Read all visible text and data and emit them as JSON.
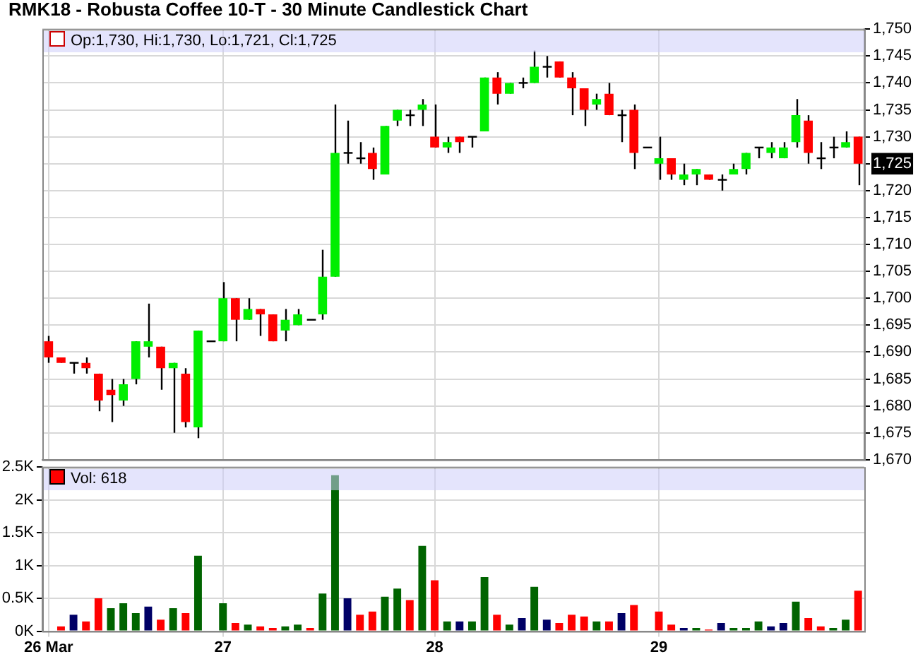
{
  "chart_data": [
    {
      "type": "candlestick",
      "title": "RMK18 - Robusta Coffee 10-T - 30 Minute Candlestick Chart",
      "categories": [
        null,
        null,
        null,
        null,
        null,
        null,
        null,
        null,
        null,
        null,
        null,
        null,
        null,
        null,
        null,
        null,
        null,
        null,
        null,
        null,
        null,
        null,
        null,
        null,
        null,
        null,
        null,
        null,
        null,
        null,
        null,
        null,
        null,
        null,
        null,
        null,
        null,
        null,
        null,
        null,
        null,
        null,
        null,
        null,
        null,
        null,
        null,
        null,
        null,
        null,
        null,
        null,
        null,
        null,
        null,
        null,
        null,
        null,
        null,
        null,
        null,
        null,
        null,
        null,
        null,
        null
      ],
      "ohlc": [
        [
          1692,
          1693,
          1688,
          1689
        ],
        [
          1689,
          1689,
          1688,
          1688
        ],
        [
          1688,
          1688,
          1686,
          1688
        ],
        [
          1688,
          1689,
          1686,
          1687
        ],
        [
          1686,
          1686,
          1679,
          1681
        ],
        [
          1683,
          1685,
          1677,
          1682
        ],
        [
          1681,
          1685,
          1680,
          1684
        ],
        [
          1685,
          1692,
          1684,
          1692
        ],
        [
          1691,
          1699,
          1689,
          1692
        ],
        [
          1691,
          1691,
          1683,
          1687
        ],
        [
          1687,
          1688,
          1675,
          1688
        ],
        [
          1686,
          1687,
          1676,
          1677
        ],
        [
          1676,
          1694,
          1674,
          1694
        ],
        [
          1692,
          1692,
          1692,
          1692
        ],
        [
          1692,
          1703,
          1692,
          1700
        ],
        [
          1700,
          1700,
          1692,
          1696
        ],
        [
          1696,
          1700,
          1696,
          1698
        ],
        [
          1698,
          1698,
          1693,
          1697
        ],
        [
          1697,
          1697,
          1692,
          1692
        ],
        [
          1694,
          1698,
          1692,
          1696
        ],
        [
          1695,
          1698,
          1695,
          1697
        ],
        [
          1696,
          1696,
          1696,
          1696
        ],
        [
          1697,
          1709,
          1696,
          1704
        ],
        [
          1704,
          1736,
          1704,
          1727
        ],
        [
          1727,
          1733,
          1725,
          1727
        ],
        [
          1726,
          1729,
          1725,
          1726
        ],
        [
          1727,
          1728,
          1722,
          1724
        ],
        [
          1723,
          1732,
          1723,
          1732
        ],
        [
          1733,
          1735,
          1732,
          1735
        ],
        [
          1734,
          1735,
          1732,
          1734
        ],
        [
          1735,
          1737,
          1732,
          1736
        ],
        [
          1730,
          1736,
          1728,
          1728
        ],
        [
          1728,
          1730,
          1727,
          1729
        ],
        [
          1730,
          1730,
          1727,
          1729
        ],
        [
          1730,
          1730,
          1728,
          1730
        ],
        [
          1731,
          1741,
          1731,
          1741
        ],
        [
          1741,
          1742,
          1736,
          1738
        ],
        [
          1738,
          1740,
          1738,
          1740
        ],
        [
          1740,
          1741,
          1739,
          1740
        ],
        [
          1740,
          1746,
          1740,
          1743
        ],
        [
          1743,
          1745,
          1741,
          1743
        ],
        [
          1744,
          1744,
          1741,
          1741
        ],
        [
          1741,
          1742,
          1734,
          1739
        ],
        [
          1739,
          1739,
          1732,
          1735
        ],
        [
          1736,
          1738,
          1735,
          1737
        ],
        [
          1738,
          1740,
          1734,
          1734
        ],
        [
          1734,
          1735,
          1729,
          1734
        ],
        [
          1735,
          1736,
          1724,
          1727
        ],
        [
          1728,
          1728,
          1728,
          1728
        ],
        [
          1725,
          1730,
          1722,
          1726
        ],
        [
          1726,
          1726,
          1722,
          1723
        ],
        [
          1722,
          1725,
          1721,
          1723
        ],
        [
          1723,
          1724,
          1721,
          1724
        ],
        [
          1723,
          1723,
          1722,
          1722
        ],
        [
          1722,
          1723,
          1720,
          1722
        ],
        [
          1723,
          1725,
          1723,
          1724
        ],
        [
          1724,
          1727,
          1723,
          1727
        ],
        [
          1728,
          1728,
          1726,
          1728
        ],
        [
          1727,
          1729,
          1726,
          1728
        ],
        [
          1726,
          1729,
          1726,
          1728
        ],
        [
          1729,
          1737,
          1728,
          1734
        ],
        [
          1733,
          1734,
          1725,
          1727
        ],
        [
          1726,
          1729,
          1724,
          1726
        ],
        [
          1728,
          1730,
          1726,
          1728
        ],
        [
          1728,
          1731,
          1728,
          1729
        ],
        [
          1730,
          1730,
          1721,
          1725
        ]
      ],
      "colors": [
        "#ff0000",
        "#ff0000",
        "#000000",
        "#ff0000",
        "#ff0000",
        "#ff0000",
        "#00ee00",
        "#00ee00",
        "#00ee00",
        "#ff0000",
        "#00ee00",
        "#ff0000",
        "#00ee00",
        "#000000",
        "#00ee00",
        "#ff0000",
        "#00ee00",
        "#ff0000",
        "#ff0000",
        "#00ee00",
        "#00ee00",
        "#000000",
        "#00ee00",
        "#00ee00",
        "#000000",
        "#000000",
        "#ff0000",
        "#00ee00",
        "#00ee00",
        "#000000",
        "#00ee00",
        "#ff0000",
        "#00ee00",
        "#ff0000",
        "#000000",
        "#00ee00",
        "#ff0000",
        "#00ee00",
        "#000000",
        "#00ee00",
        "#000000",
        "#ff0000",
        "#ff0000",
        "#ff0000",
        "#00ee00",
        "#ff0000",
        "#000000",
        "#ff0000",
        "#000000",
        "#00ee00",
        "#ff0000",
        "#00ee00",
        "#00ee00",
        "#ff0000",
        "#000000",
        "#00ee00",
        "#00ee00",
        "#000000",
        "#00ee00",
        "#00ee00",
        "#00ee00",
        "#ff0000",
        "#000000",
        "#000000",
        "#00ee00",
        "#ff0000"
      ],
      "ylim": [
        1670,
        1750
      ],
      "yticks": [
        {
          "value": 1670,
          "label": "1,670"
        },
        {
          "value": 1675,
          "label": "1,675"
        },
        {
          "value": 1680,
          "label": "1,680"
        },
        {
          "value": 1685,
          "label": "1,685"
        },
        {
          "value": 1690,
          "label": "1,690"
        },
        {
          "value": 1695,
          "label": "1,695"
        },
        {
          "value": 1700,
          "label": "1,700"
        },
        {
          "value": 1705,
          "label": "1,705"
        },
        {
          "value": 1710,
          "label": "1,710"
        },
        {
          "value": 1715,
          "label": "1,715"
        },
        {
          "value": 1720,
          "label": "1,720"
        },
        {
          "value": 1725,
          "label": "1,725"
        },
        {
          "value": 1730,
          "label": "1,730"
        },
        {
          "value": 1735,
          "label": "1,735"
        },
        {
          "value": 1740,
          "label": "1,740"
        },
        {
          "value": 1745,
          "label": "1,745"
        },
        {
          "value": 1750,
          "label": "1,750"
        }
      ],
      "grid": true,
      "tick_labels": "y",
      "annotations": [
        "Op:1,730, Hi:1,730, Lo:1,721, Cl:1,725"
      ]
    },
    {
      "type": "bar",
      "categories": [
        "26 Mar",
        null,
        null,
        null,
        null,
        null,
        null,
        null,
        null,
        null,
        null,
        null,
        null,
        null,
        "27",
        null,
        null,
        null,
        null,
        null,
        null,
        null,
        null,
        null,
        null,
        null,
        null,
        null,
        null,
        null,
        null,
        "28",
        null,
        null,
        null,
        null,
        null,
        null,
        null,
        null,
        null,
        null,
        null,
        null,
        null,
        null,
        null,
        null,
        null,
        "29",
        null,
        null,
        null,
        null,
        null,
        null,
        null,
        null,
        null,
        null,
        null,
        null,
        null,
        null,
        null,
        null
      ],
      "series": [
        {
          "name": "Vol: 618",
          "color": "#ff0000",
          "values": [
            null,
            75,
            250,
            150,
            500,
            350,
            425,
            275,
            375,
            175,
            350,
            275,
            1150,
            null,
            425,
            125,
            100,
            75,
            50,
            75,
            100,
            50,
            575,
            2375,
            500,
            250,
            300,
            525,
            650,
            475,
            1300,
            775,
            150,
            150,
            150,
            825,
            250,
            100,
            200,
            675,
            175,
            125,
            250,
            225,
            150,
            150,
            275,
            400,
            null,
            300,
            100,
            50,
            50,
            25,
            125,
            50,
            50,
            150,
            75,
            125,
            450,
            200,
            75,
            50,
            175,
            618
          ],
          "colors": [
            null,
            "#ff0000",
            "#000066",
            "#ff0000",
            "#ff0000",
            "#006400",
            "#006400",
            "#006400",
            "#000066",
            "#ff0000",
            "#006400",
            "#ff0000",
            "#006400",
            null,
            "#006400",
            "#ff0000",
            "#006400",
            "#ff0000",
            "#ff0000",
            "#006400",
            "#006400",
            "#ff0000",
            "#006400",
            "#006400",
            "#000066",
            "#ff0000",
            "#ff0000",
            "#006400",
            "#006400",
            "#ff0000",
            "#006400",
            "#ff0000",
            "#006400",
            "#000066",
            "#006400",
            "#006400",
            "#ff0000",
            "#006400",
            "#000066",
            "#006400",
            "#000066",
            "#ff0000",
            "#ff0000",
            "#ff0000",
            "#006400",
            "#ff0000",
            "#000066",
            "#ff0000",
            null,
            "#ff0000",
            "#ff0000",
            "#000066",
            "#006400",
            "#ff0000",
            "#000066",
            "#006400",
            "#006400",
            "#006400",
            "#000066",
            "#000066",
            "#006400",
            "#ff0000",
            "#ff0000",
            "#006400",
            "#006400",
            "#ff0000"
          ]
        }
      ],
      "ylim": [
        0,
        2500
      ],
      "yticks": [
        {
          "value": 0,
          "label": "0K"
        },
        {
          "value": 500,
          "label": "0.5K"
        },
        {
          "value": 1000,
          "label": "1K"
        },
        {
          "value": 1500,
          "label": "1.5K"
        },
        {
          "value": 2000,
          "label": "2K"
        },
        {
          "value": 2500,
          "label": "2.5K"
        }
      ],
      "grid": true,
      "legend": "top left"
    }
  ]
}
